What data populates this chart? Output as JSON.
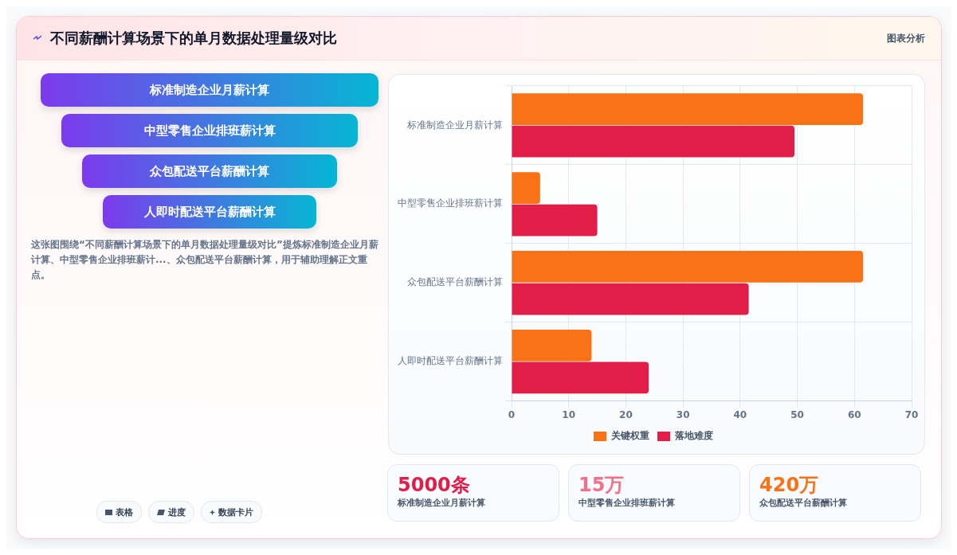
{
  "chart_data": [
    {
      "type": "bar",
      "title": "不同薪酬计算场景下的单月数据处理量级对比",
      "subtitle": "图表分析",
      "orientation": "horizontal",
      "categories": [
        "标准制造企业月薪计算",
        "中型零售企业排班薪计算",
        "众包配送平台薪酬计算",
        "人即时配送平台薪酬计算"
      ],
      "series": [
        {
          "name": "关键权重",
          "color": "#f97316",
          "values": [
            61.5,
            5,
            61.5,
            14
          ]
        },
        {
          "name": "落地难度",
          "color": "#e11d48",
          "values": [
            49.5,
            15,
            41.5,
            24
          ]
        }
      ],
      "xlim": [
        0,
        70
      ],
      "xticks": [
        0,
        10,
        20,
        30,
        40,
        50,
        60,
        70
      ],
      "grid": true,
      "legend": "bottom"
    },
    {
      "type": "other",
      "annotations": [
        "标准制造企业月薪计算",
        "中型零售企业排班薪计算",
        "众包配送平台薪酬计算",
        "人即时配送平台薪酬计算"
      ]
    },
    {
      "type": "other",
      "annotations": [
        "这张图围绕“不同薪酬计算场景下的单月数据处理量级对比”提炼标准制造企业月薪计算、中型零售企业排班薪计...、众包配送平台薪酬计算，用于辅助理解正文重点。"
      ]
    },
    {
      "type": "other",
      "annotations": [
        "表格",
        "进度",
        "数据卡片"
      ]
    },
    {
      "type": "other",
      "annotations": [
        "5000条",
        "标准制造企业月薪计算",
        "15万",
        "中型零售企业排班薪计算",
        "420万",
        "众包配送平台薪酬计算"
      ]
    }
  ]
}
